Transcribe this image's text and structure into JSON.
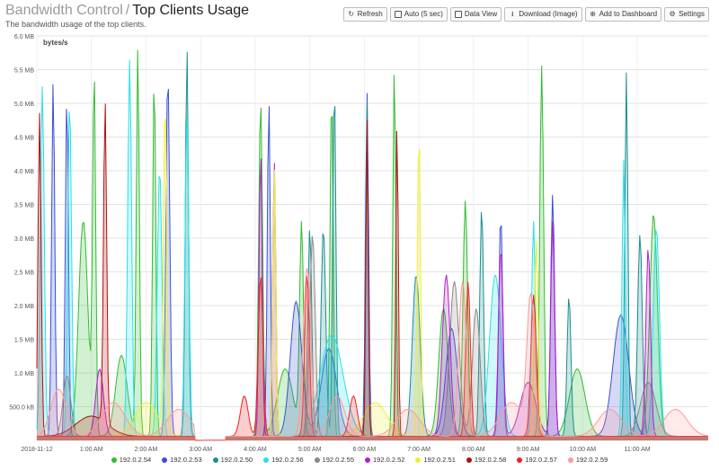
{
  "header": {
    "crumb": "Bandwidth Control",
    "separator": "/",
    "title": "Top Clients Usage",
    "subtitle": "The bandwidth usage of the top clients."
  },
  "toolbar": {
    "refresh": "Refresh",
    "auto": "Auto (5 sec)",
    "data_view": "Data View",
    "download": "Download (Image)",
    "add_dashboard": "Add to Dashboard",
    "settings": "Settings"
  },
  "icons": {
    "refresh": "refresh-icon",
    "auto": "checkbox-icon",
    "data_view": "checkbox-icon",
    "download": "download-icon",
    "add_dashboard": "plus-circle-icon",
    "settings": "gear-icon"
  },
  "chart_data": {
    "type": "area",
    "stacked": false,
    "ylabel": "bytes/s",
    "y_unit": "MB",
    "ylim": [
      0,
      6.0
    ],
    "y_ticks": [
      "500.0 kB",
      "1.0 MB",
      "1.5 MB",
      "2.0 MB",
      "2.5 MB",
      "3.0 MB",
      "3.5 MB",
      "4.0 MB",
      "4.5 MB",
      "5.0 MB",
      "5.5 MB",
      "6.0 MB"
    ],
    "y_tick_values": [
      0.5,
      1.0,
      1.5,
      2.0,
      2.5,
      3.0,
      3.5,
      4.0,
      4.5,
      5.0,
      5.5,
      6.0
    ],
    "xlim": [
      0,
      12.3
    ],
    "x_ticks": [
      "2018-11-12",
      "1:00 AM",
      "2:00 AM",
      "3:00 AM",
      "4:00 AM",
      "5:00 AM",
      "6:00 AM",
      "7:00 AM",
      "8:00 AM",
      "9:00 AM",
      "10:00 AM",
      "11:00 AM"
    ],
    "x_tick_values": [
      0,
      1,
      2,
      3,
      4,
      5,
      6,
      7,
      8,
      9,
      10,
      11
    ],
    "x_unit": "hours after 2018-11-12 00:00",
    "grid": true,
    "legend_position": "bottom",
    "series": [
      {
        "name": "192.0.2.54",
        "color": "#33bb33",
        "peaks": [
          [
            0.85,
            3.2,
            0.12
          ],
          [
            1.05,
            5.3,
            0.04
          ],
          [
            1.55,
            1.2,
            0.15
          ],
          [
            1.85,
            5.8,
            0.04
          ],
          [
            2.15,
            5.4,
            0.04
          ],
          [
            4.1,
            5.0,
            0.05
          ],
          [
            4.55,
            1.0,
            0.2
          ],
          [
            4.85,
            3.1,
            0.05
          ],
          [
            5.4,
            5.2,
            0.04
          ],
          [
            6.55,
            5.5,
            0.04
          ],
          [
            7.45,
            1.9,
            0.12
          ],
          [
            7.85,
            3.5,
            0.06
          ],
          [
            9.25,
            5.5,
            0.05
          ],
          [
            9.9,
            1.0,
            0.2
          ],
          [
            11.3,
            3.3,
            0.1
          ]
        ]
      },
      {
        "name": "192.0.2.53",
        "color": "#3b50d6",
        "peaks": [
          [
            0.3,
            5.3,
            0.04
          ],
          [
            0.55,
            5.1,
            0.04
          ],
          [
            2.4,
            5.4,
            0.05
          ],
          [
            4.25,
            5.0,
            0.04
          ],
          [
            4.75,
            2.0,
            0.15
          ],
          [
            5.35,
            1.3,
            0.2
          ],
          [
            6.05,
            5.1,
            0.04
          ],
          [
            7.6,
            1.6,
            0.15
          ],
          [
            8.5,
            3.3,
            0.05
          ],
          [
            9.45,
            3.6,
            0.05
          ],
          [
            10.7,
            1.8,
            0.2
          ]
        ]
      },
      {
        "name": "192.0.2.50",
        "color": "#1a8f8f",
        "peaks": [
          [
            2.75,
            5.8,
            0.04
          ],
          [
            5.0,
            3.1,
            0.05
          ],
          [
            5.25,
            3.1,
            0.06
          ],
          [
            5.45,
            5.3,
            0.04
          ],
          [
            6.05,
            5.0,
            0.03
          ],
          [
            6.95,
            2.4,
            0.1
          ],
          [
            8.15,
            3.4,
            0.05
          ],
          [
            9.75,
            2.1,
            0.05
          ],
          [
            10.8,
            5.4,
            0.04
          ],
          [
            11.05,
            3.0,
            0.06
          ]
        ]
      },
      {
        "name": "192.0.2.56",
        "color": "#28e0e8",
        "peaks": [
          [
            0.1,
            5.2,
            0.05
          ],
          [
            0.6,
            5.0,
            0.05
          ],
          [
            1.7,
            5.6,
            0.05
          ],
          [
            2.25,
            4.0,
            0.06
          ],
          [
            2.75,
            4.8,
            0.05
          ],
          [
            5.4,
            1.5,
            0.3
          ],
          [
            8.4,
            2.4,
            0.15
          ],
          [
            9.1,
            3.2,
            0.05
          ],
          [
            10.75,
            4.1,
            0.04
          ],
          [
            11.35,
            3.1,
            0.08
          ]
        ]
      },
      {
        "name": "192.0.2.55",
        "color": "#888888",
        "peaks": [
          [
            0.55,
            0.9,
            0.1
          ],
          [
            5.05,
            3.0,
            0.07
          ],
          [
            7.65,
            2.3,
            0.12
          ],
          [
            8.05,
            1.9,
            0.1
          ],
          [
            11.2,
            0.8,
            0.2
          ]
        ]
      },
      {
        "name": "192.0.2.52",
        "color": "#b020c8",
        "peaks": [
          [
            1.15,
            1.0,
            0.1
          ],
          [
            4.1,
            4.3,
            0.04
          ],
          [
            4.35,
            4.1,
            0.04
          ],
          [
            7.5,
            2.4,
            0.1
          ],
          [
            8.5,
            2.8,
            0.06
          ],
          [
            9.45,
            3.2,
            0.05
          ],
          [
            9.0,
            0.8,
            0.2
          ],
          [
            11.2,
            2.8,
            0.06
          ]
        ]
      },
      {
        "name": "192.0.2.51",
        "color": "#eeee33",
        "peaks": [
          [
            2.35,
            5.0,
            0.04
          ],
          [
            4.35,
            4.0,
            0.04
          ],
          [
            7.0,
            4.6,
            0.04
          ],
          [
            9.15,
            2.9,
            0.05
          ],
          [
            2.0,
            0.5,
            0.3
          ],
          [
            6.2,
            0.5,
            0.3
          ]
        ]
      },
      {
        "name": "192.0.2.58",
        "color": "#b01010",
        "peaks": [
          [
            0.05,
            4.8,
            0.04
          ],
          [
            1.25,
            4.8,
            0.04
          ],
          [
            6.05,
            4.7,
            0.03
          ],
          [
            6.6,
            4.8,
            0.03
          ],
          [
            1.0,
            0.3,
            0.4
          ]
        ]
      },
      {
        "name": "192.0.2.57",
        "color": "#ee2222",
        "peaks": [
          [
            4.1,
            2.4,
            0.06
          ],
          [
            4.95,
            2.4,
            0.06
          ],
          [
            7.9,
            2.3,
            0.06
          ],
          [
            9.1,
            2.1,
            0.07
          ],
          [
            3.8,
            0.6,
            0.1
          ],
          [
            5.8,
            0.6,
            0.1
          ]
        ]
      },
      {
        "name": "192.0.2.59",
        "color": "#ff9999",
        "peaks": [
          [
            0.4,
            0.7,
            0.2
          ],
          [
            1.4,
            0.5,
            0.3
          ],
          [
            2.6,
            0.4,
            0.3
          ],
          [
            4.95,
            2.5,
            0.1
          ],
          [
            5.5,
            0.6,
            0.2
          ],
          [
            6.8,
            0.4,
            0.3
          ],
          [
            7.8,
            2.3,
            0.1
          ],
          [
            8.7,
            0.5,
            0.3
          ],
          [
            9.05,
            2.0,
            0.1
          ],
          [
            10.5,
            0.4,
            0.3
          ],
          [
            11.7,
            0.4,
            0.3
          ]
        ]
      }
    ]
  }
}
